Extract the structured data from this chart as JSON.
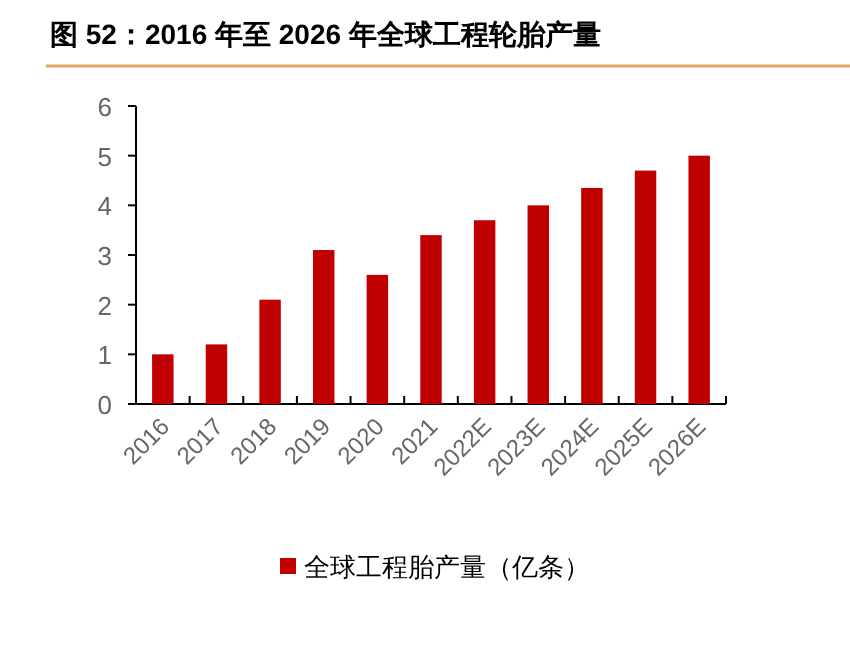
{
  "chart_data": {
    "type": "bar",
    "title": "图 52：2016 年至 2026 年全球工程轮胎产量",
    "categories": [
      "2016",
      "2017",
      "2018",
      "2019",
      "2020",
      "2021",
      "2022E",
      "2023E",
      "2024E",
      "2025E",
      "2026E"
    ],
    "series": [
      {
        "name": "全球工程胎产量（亿条）",
        "color": "#c00000",
        "values": [
          1.0,
          1.2,
          2.1,
          3.1,
          2.6,
          3.4,
          3.7,
          4.0,
          4.35,
          4.7,
          5.0
        ]
      }
    ],
    "ylim": [
      0,
      6
    ],
    "yticks": [
      0,
      1,
      2,
      3,
      4,
      5,
      6
    ],
    "grid": false,
    "legend": "bottom"
  }
}
